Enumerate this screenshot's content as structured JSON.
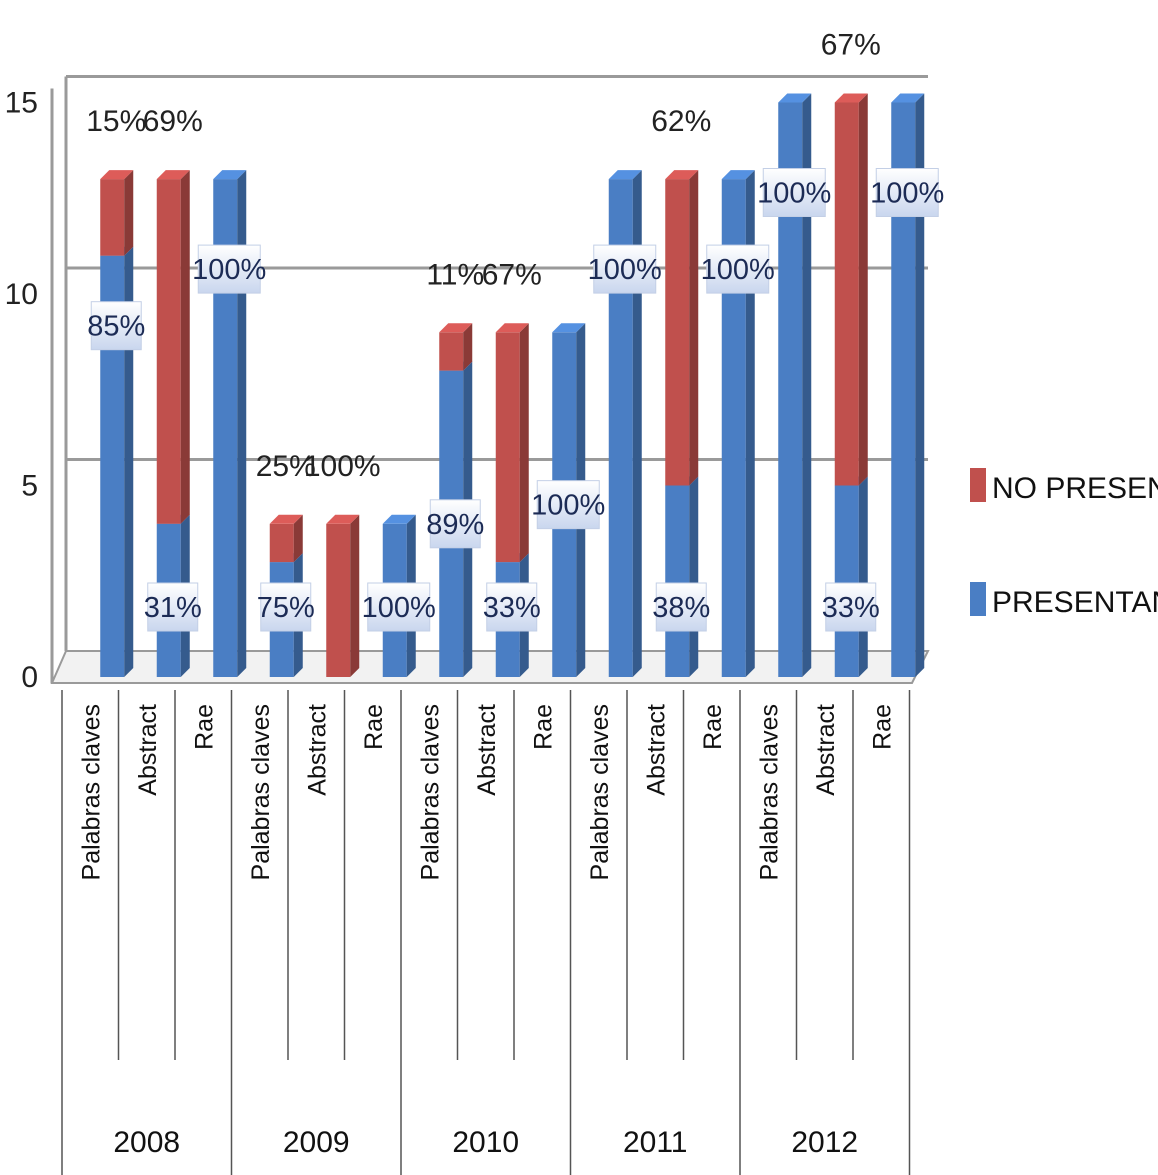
{
  "colors": {
    "presentan": "#4a7ec4",
    "no_presentan": "#c0504d",
    "grid": "#9a9a9a",
    "label_box": "#dbe4f3"
  },
  "legend": {
    "no_presentan": "NO PRESENTAN",
    "presentan": "PRESENTAN"
  },
  "chart_data": {
    "type": "bar",
    "stacked": true,
    "three_d": true,
    "ylim": [
      0,
      15
    ],
    "yticks": [
      "0",
      "5",
      "10",
      "15"
    ],
    "groups": [
      {
        "label": "2008",
        "bars": [
          {
            "category": "Palabras claves",
            "presentan": 11,
            "no_presentan": 2,
            "presentan_label": "85%",
            "no_presentan_label": "15%"
          },
          {
            "category": "Abstract",
            "presentan": 4,
            "no_presentan": 9,
            "presentan_label": "31%",
            "no_presentan_label": "69%"
          },
          {
            "category": "Rae",
            "presentan": 13,
            "no_presentan": 0,
            "presentan_label": "100%",
            "no_presentan_label": ""
          }
        ]
      },
      {
        "label": "2009",
        "bars": [
          {
            "category": "Palabras claves",
            "presentan": 3,
            "no_presentan": 1,
            "presentan_label": "75%",
            "no_presentan_label": "25%"
          },
          {
            "category": "Abstract",
            "presentan": 0,
            "no_presentan": 4,
            "presentan_label": "",
            "no_presentan_label": "100%"
          },
          {
            "category": "Rae",
            "presentan": 4,
            "no_presentan": 0,
            "presentan_label": "100%",
            "no_presentan_label": ""
          }
        ]
      },
      {
        "label": "2010",
        "bars": [
          {
            "category": "Palabras claves",
            "presentan": 8,
            "no_presentan": 1,
            "presentan_label": "89%",
            "no_presentan_label": "11%"
          },
          {
            "category": "Abstract",
            "presentan": 3,
            "no_presentan": 6,
            "presentan_label": "33%",
            "no_presentan_label": "67%"
          },
          {
            "category": "Rae",
            "presentan": 9,
            "no_presentan": 0,
            "presentan_label": "100%",
            "no_presentan_label": ""
          }
        ]
      },
      {
        "label": "2011",
        "bars": [
          {
            "category": "Palabras claves",
            "presentan": 13,
            "no_presentan": 0,
            "presentan_label": "100%",
            "no_presentan_label": ""
          },
          {
            "category": "Abstract",
            "presentan": 5,
            "no_presentan": 8,
            "presentan_label": "38%",
            "no_presentan_label": "62%"
          },
          {
            "category": "Rae",
            "presentan": 13,
            "no_presentan": 0,
            "presentan_label": "100%",
            "no_presentan_label": ""
          }
        ]
      },
      {
        "label": "2012",
        "bars": [
          {
            "category": "Palabras claves",
            "presentan": 15,
            "no_presentan": 0,
            "presentan_label": "100%",
            "no_presentan_label": ""
          },
          {
            "category": "Abstract",
            "presentan": 5,
            "no_presentan": 10,
            "presentan_label": "33%",
            "no_presentan_label": "67%"
          },
          {
            "category": "Rae",
            "presentan": 15,
            "no_presentan": 0,
            "presentan_label": "100%",
            "no_presentan_label": ""
          }
        ]
      }
    ]
  }
}
